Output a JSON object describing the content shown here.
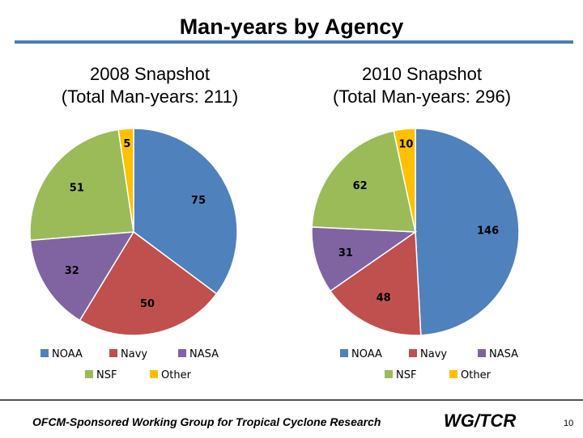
{
  "slide": {
    "title": "Man-years by Agency",
    "footer_text": "OFCM-Sponsored Working Group for Tropical Cyclone Research",
    "footer_logo": "WG/TCR",
    "page_number": "10"
  },
  "colors": {
    "NOAA": "#4f81bd",
    "Navy": "#c0504d",
    "NASA": "#8064a2",
    "NSF": "#9bbb59",
    "Other": "#ffc000",
    "rule": "#4a7ebb"
  },
  "chart_data": [
    {
      "type": "pie",
      "title_line1": "2008 Snapshot",
      "title_line2": "(Total Man-years: 211)",
      "categories": [
        "NOAA",
        "Navy",
        "NASA",
        "NSF",
        "Other"
      ],
      "values": [
        75,
        50,
        32,
        51,
        5
      ],
      "data_labels": [
        "75",
        "50",
        "32",
        "51",
        "5"
      ],
      "legend": [
        "NOAA",
        "Navy",
        "NASA",
        "NSF",
        "Other"
      ],
      "legend_position": "bottom"
    },
    {
      "type": "pie",
      "title_line1": "2010 Snapshot",
      "title_line2": "(Total Man-years: 296)",
      "categories": [
        "NOAA",
        "Navy",
        "NASA",
        "NSF",
        "Other"
      ],
      "values": [
        146,
        48,
        31,
        62,
        10
      ],
      "data_labels": [
        "146",
        "48",
        "31",
        "62",
        "10"
      ],
      "legend": [
        "NOAA",
        "Navy",
        "NASA",
        "NSF",
        "Other"
      ],
      "legend_position": "bottom"
    }
  ]
}
